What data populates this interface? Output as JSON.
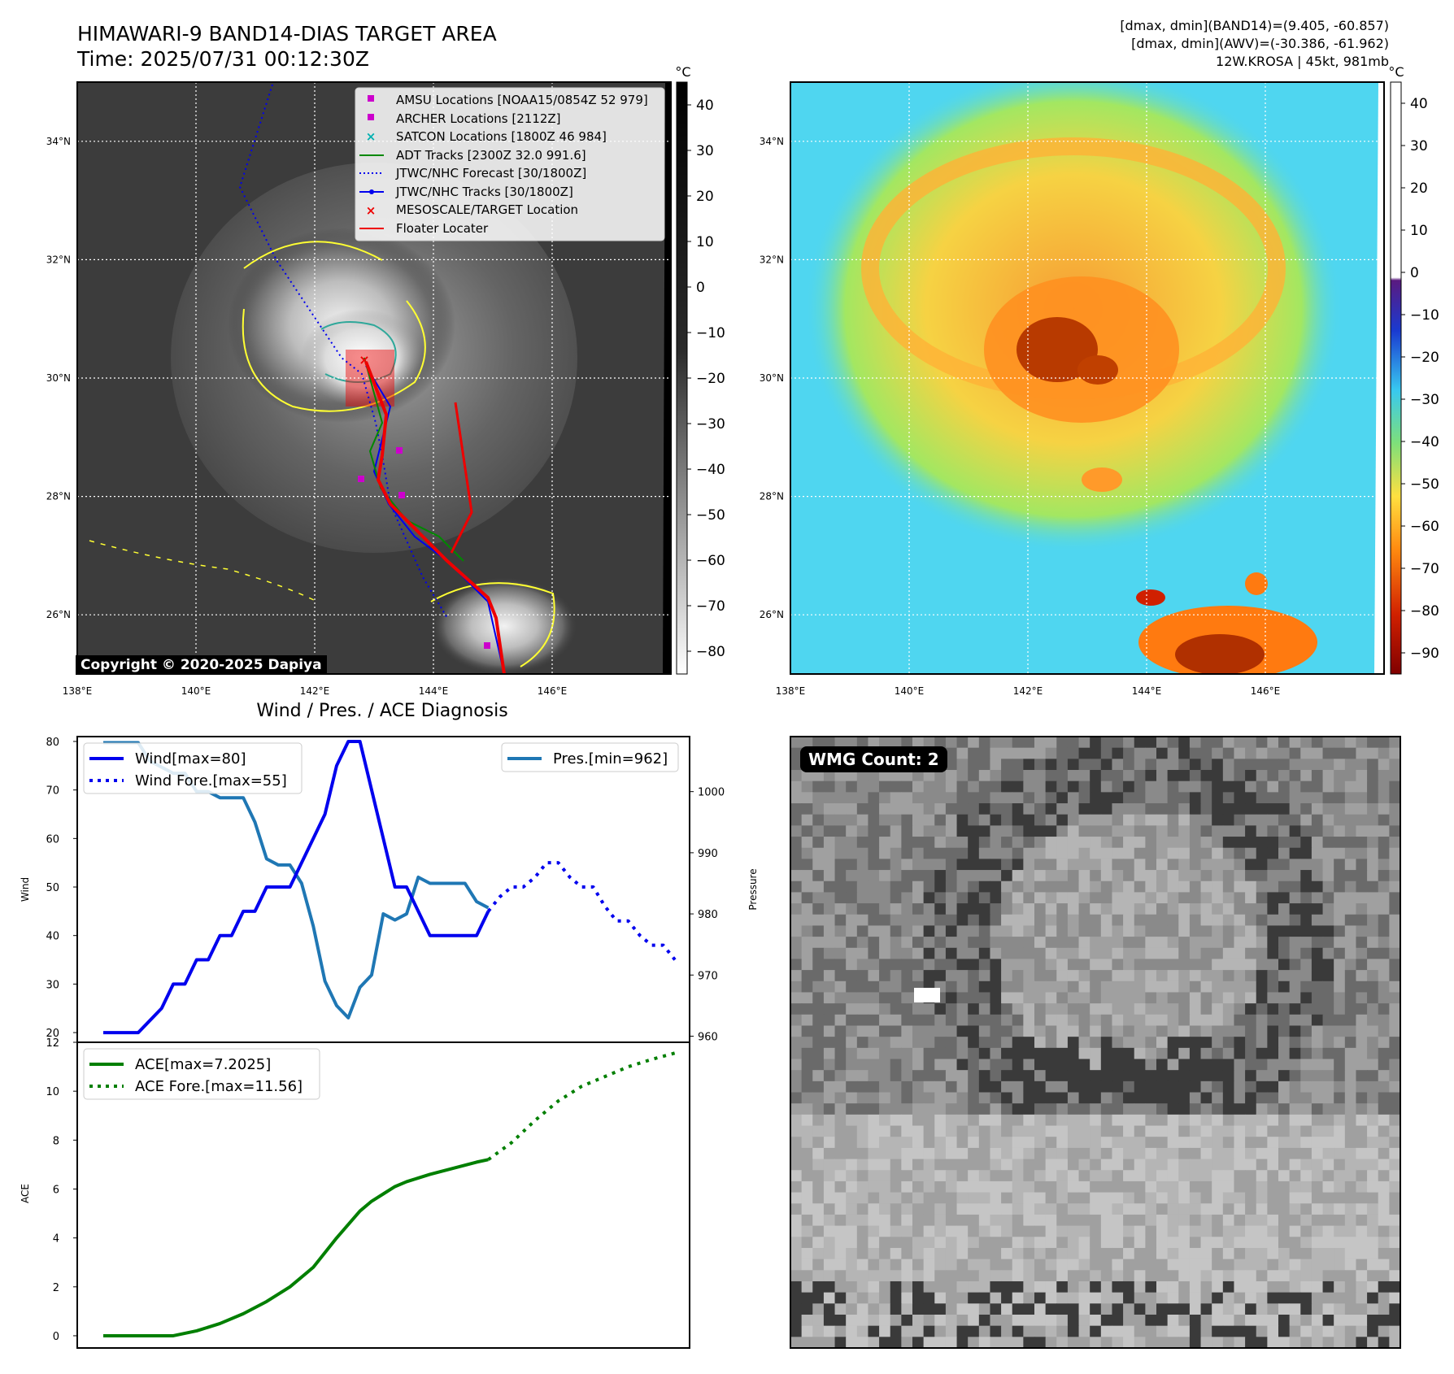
{
  "header": {
    "title": "HIMAWARI-9 BAND14-DIAS TARGET AREA",
    "time": "Time: 2025/07/31 00:12:30Z",
    "stat_band14": "[dmax, dmin](BAND14)=(9.405, -60.857)",
    "stat_awv": "[dmax, dmin](AWV)=(-30.386, -61.962)",
    "storm": "12W.KROSA | 45kt, 981mb"
  },
  "copyright": "Copyright © 2020-2025 Dapiya",
  "wmg_count": "WMG Count: 2",
  "colors": {
    "wind": "#0000ee",
    "pressure": "#1f77b4",
    "ace": "#007f00",
    "track_red": "#ee0000",
    "coast_yellow": "#ffff33"
  },
  "maps": {
    "lon_ticks": [
      "138°E",
      "140°E",
      "142°E",
      "144°E",
      "146°E"
    ],
    "lat_ticks": [
      "34°N",
      "32°N",
      "30°N",
      "28°N",
      "26°N"
    ],
    "lon_range": [
      138,
      148
    ],
    "lat_range": [
      25,
      35
    ]
  },
  "legend": {
    "items": [
      "AMSU Locations [NOAA15/0854Z 52 979]",
      "ARCHER Locations [2112Z]",
      "SATCON Locations [1800Z 46 984]",
      "ADT Tracks [2300Z 32.0 991.6]",
      "JTWC/NHC Forecast [30/1800Z]",
      "JTWC/NHC Tracks [30/1800Z]",
      "MESOSCALE/TARGET Location",
      "Floater Locater"
    ]
  },
  "colorbar_left": {
    "unit": "°C",
    "ticks": [
      "40",
      "30",
      "20",
      "10",
      "0",
      "−10",
      "−20",
      "−30",
      "−40",
      "−50",
      "−60",
      "−70",
      "−80"
    ]
  },
  "colorbar_right": {
    "unit": "°C",
    "ticks": [
      "40",
      "30",
      "20",
      "10",
      "0",
      "−10",
      "−20",
      "−30",
      "−40",
      "−50",
      "−60",
      "−70",
      "−80",
      "−90"
    ]
  },
  "chart_data": [
    {
      "type": "line",
      "title": "Wind / Pres. / ACE Diagnosis",
      "ylabel": "Wind",
      "ylabel_right": "Pressure",
      "ylim": [
        18,
        81
      ],
      "ylim_right": [
        959,
        1009
      ],
      "yticks": [
        "80",
        "70",
        "60",
        "50",
        "40",
        "30",
        "20"
      ],
      "yticks_right": [
        "1000",
        "990",
        "980",
        "970",
        "960"
      ],
      "legend_left": [
        "Wind[max=80]",
        "Wind Fore.[max=55]"
      ],
      "legend_right": [
        "Pres.[min=962]"
      ],
      "series": [
        {
          "name": "Wind[max=80]",
          "x": [
            0,
            3,
            5,
            6,
            7,
            8,
            9,
            10,
            11,
            12,
            13,
            14,
            15,
            16,
            17,
            18,
            19,
            20,
            21,
            22,
            23,
            24,
            25,
            26,
            27,
            28,
            29,
            30,
            31,
            32,
            33
          ],
          "values": [
            20,
            20,
            25,
            30,
            30,
            35,
            35,
            40,
            40,
            45,
            45,
            50,
            50,
            50,
            55,
            60,
            65,
            75,
            80,
            80,
            70,
            60,
            50,
            50,
            45,
            40,
            40,
            40,
            40,
            40,
            45
          ]
        },
        {
          "name": "Wind Fore.[max=55]",
          "x": [
            33,
            34,
            35,
            36,
            37,
            38,
            39,
            40,
            41,
            42,
            43,
            44,
            45,
            46,
            47,
            48,
            49
          ],
          "values": [
            45,
            48,
            50,
            50,
            52,
            55,
            55,
            52,
            50,
            50,
            46,
            43,
            43,
            40,
            38,
            38,
            35
          ]
        },
        {
          "name": "Pres.[min=962]",
          "x": [
            0,
            3,
            4,
            5,
            6,
            7,
            8,
            9,
            10,
            11,
            12,
            13,
            14,
            15,
            16,
            17,
            18,
            19,
            20,
            21,
            22,
            23,
            24,
            25,
            26,
            27,
            28,
            29,
            30,
            31,
            32,
            33
          ],
          "values": [
            1008,
            1008,
            1005,
            1004,
            1003,
            1003,
            1000,
            1000,
            999,
            999,
            999,
            995,
            989,
            988,
            988,
            985,
            978,
            969,
            965,
            963,
            968,
            970,
            980,
            979,
            980,
            986,
            985,
            985,
            985,
            985,
            982,
            981
          ]
        }
      ]
    },
    {
      "type": "line",
      "ylabel": "ACE",
      "ylim": [
        -0.5,
        12
      ],
      "yticks": [
        "12",
        "10",
        "8",
        "6",
        "4",
        "2",
        "0"
      ],
      "legend": [
        "ACE[max=7.2025]",
        "ACE Fore.[max=11.56]"
      ],
      "series": [
        {
          "name": "ACE[max=7.2025]",
          "x": [
            0,
            6,
            8,
            10,
            12,
            14,
            16,
            18,
            20,
            22,
            23,
            24,
            25,
            26,
            27,
            28,
            30,
            32,
            33
          ],
          "values": [
            0,
            0,
            0.2,
            0.5,
            0.9,
            1.4,
            2.0,
            2.8,
            4.0,
            5.1,
            5.5,
            5.8,
            6.1,
            6.3,
            6.45,
            6.6,
            6.85,
            7.1,
            7.2025
          ]
        },
        {
          "name": "ACE Fore.[max=11.56]",
          "x": [
            33,
            35,
            37,
            39,
            41,
            43,
            45,
            47,
            49
          ],
          "values": [
            7.2025,
            7.9,
            8.8,
            9.6,
            10.2,
            10.6,
            11.0,
            11.3,
            11.56
          ]
        }
      ]
    }
  ]
}
